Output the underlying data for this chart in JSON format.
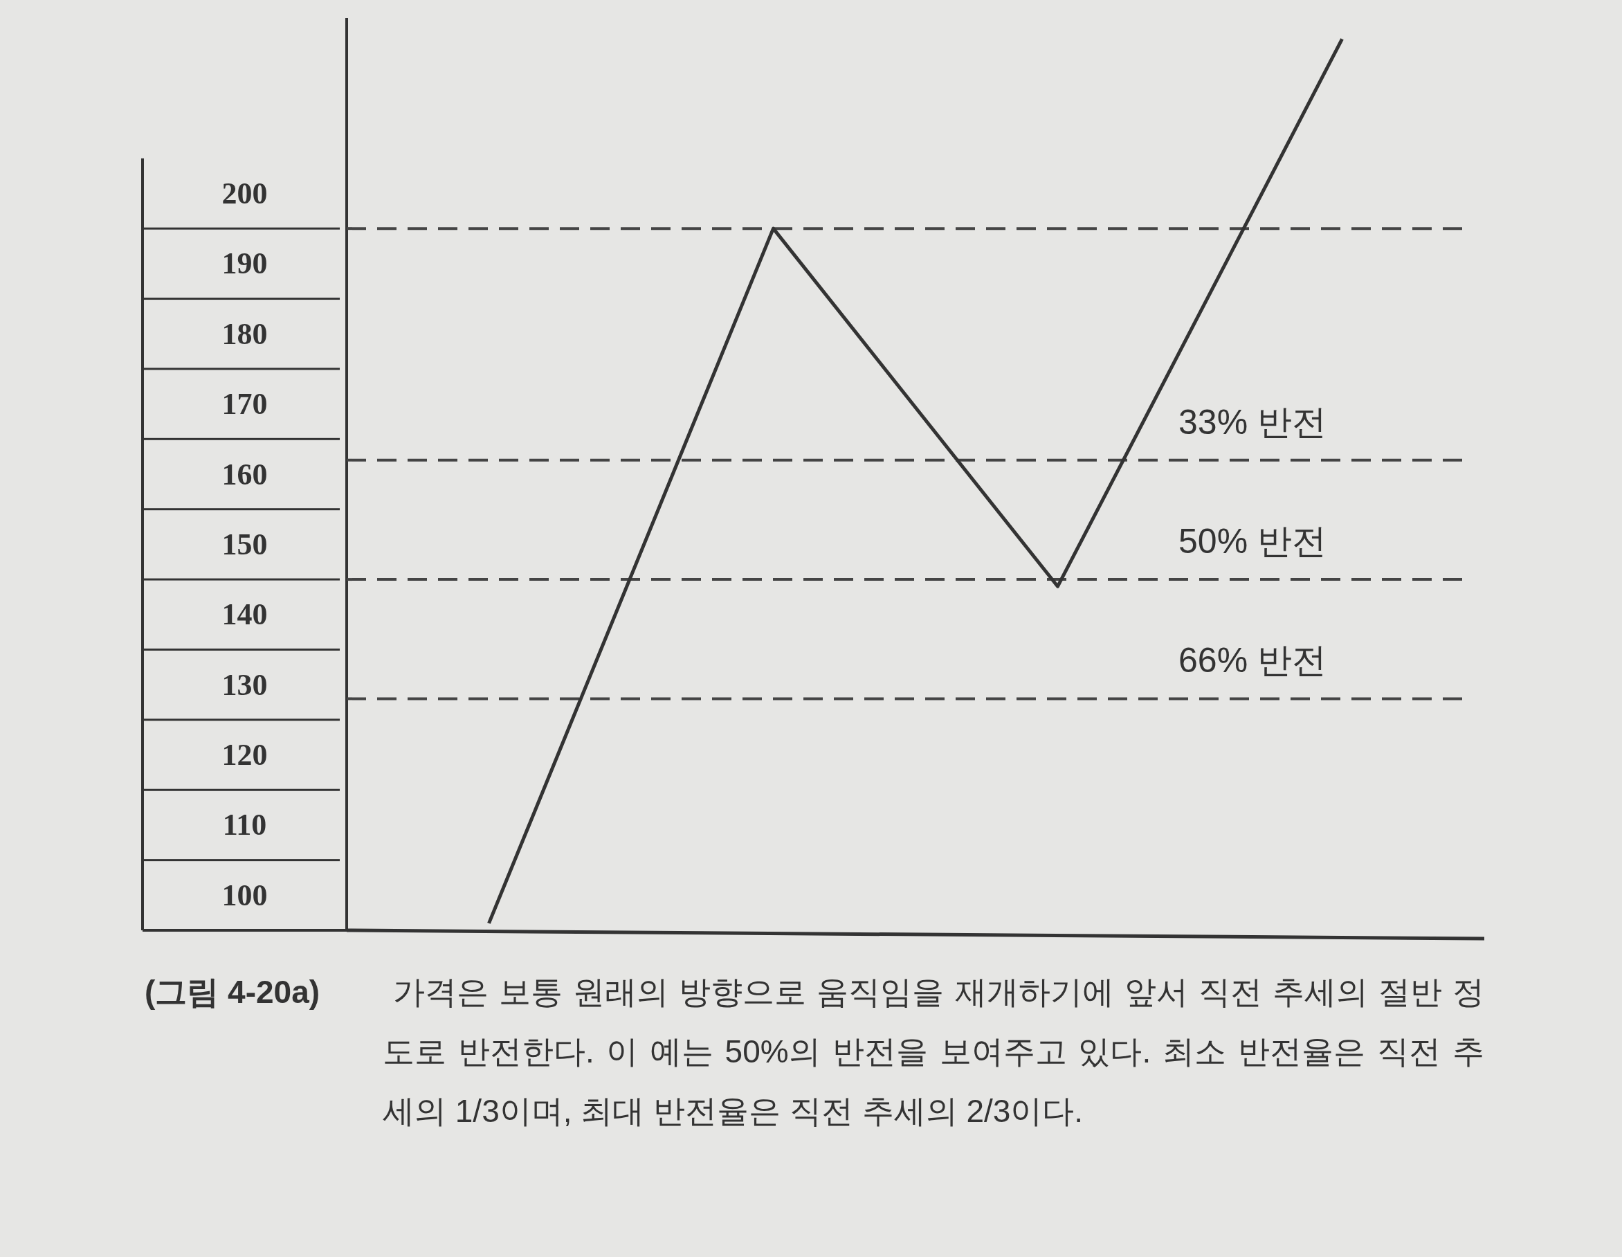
{
  "chart_data": {
    "type": "line",
    "categories": [
      null,
      null,
      null,
      null
    ],
    "values": [
      96,
      195,
      144,
      222
    ],
    "color": "#333333",
    "line_style": "solid",
    "ylim": [
      95,
      225
    ],
    "yticks": [
      100,
      110,
      120,
      130,
      140,
      150,
      160,
      170,
      180,
      190,
      200
    ],
    "tick_labels": "y",
    "ref_lines": [
      {
        "axis": "y",
        "value": 195,
        "line_style": "dashed",
        "color": "#444444"
      },
      {
        "axis": "y",
        "value": 162,
        "label": "33% 반전",
        "line_style": "dashed",
        "color": "#444444"
      },
      {
        "axis": "y",
        "value": 145,
        "label": "50% 반전",
        "line_style": "dashed",
        "color": "#444444"
      },
      {
        "axis": "y",
        "value": 128,
        "label": "66% 반전",
        "line_style": "dashed",
        "color": "#444444"
      }
    ],
    "annotations": [
      "**(그림 4-20a)** 가격은 보통 원래의 방향으로 움직임을 재개하기에 앞서 직전 추세의 절반 정도로 반전한다. 이 예는 50%의 반전을 보여주고 있다. 최소 반전율은 직전 추세의 1/3이며, 최대 반전율은 직전 추세의 2/3이다."
    ]
  }
}
